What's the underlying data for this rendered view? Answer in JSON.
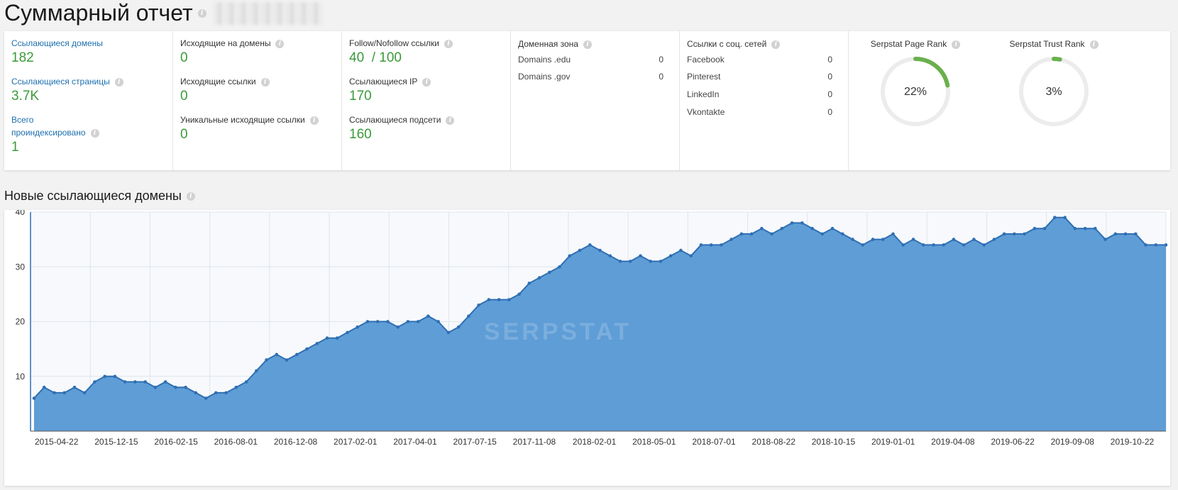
{
  "page": {
    "title": "Суммарный отчет"
  },
  "summary": {
    "col1": [
      {
        "label": "Ссылающиеся домены",
        "value": "182",
        "info": false
      },
      {
        "label": "Ссылающиеся страницы",
        "value": "3.7K",
        "info": true
      },
      {
        "label_line1": "Всего",
        "label_line2": "проиндексировано",
        "value": "1",
        "info": true
      }
    ],
    "col2": [
      {
        "label": "Исходящие на домены",
        "value": "0"
      },
      {
        "label": "Исходящие ссылки",
        "value": "0"
      },
      {
        "label": "Уникальные исходящие ссылки",
        "value": "0"
      }
    ],
    "col3": [
      {
        "label": "Follow/Nofollow ссылки",
        "value": "40  / 100"
      },
      {
        "label": "Ссылающиеся IP",
        "value": "170"
      },
      {
        "label": "Ссылающиеся подсети",
        "value": "160"
      }
    ],
    "domain_zone": {
      "title": "Доменная зона",
      "rows": [
        {
          "name": "Domains .edu",
          "value": "0"
        },
        {
          "name": "Domains .gov",
          "value": "0"
        }
      ]
    },
    "social": {
      "title": "Ссылки с соц. сетей",
      "rows": [
        {
          "name": "Facebook",
          "value": "0"
        },
        {
          "name": "Pinterest",
          "value": "0"
        },
        {
          "name": "LinkedIn",
          "value": "0"
        },
        {
          "name": "Vkontakte",
          "value": "0"
        }
      ]
    },
    "ranks": [
      {
        "title": "Serpstat Page Rank",
        "label": "22%",
        "value": 22
      },
      {
        "title": "Serpstat Trust Rank",
        "label": "3%",
        "value": 3
      }
    ]
  },
  "section": {
    "title": "Новые ссылающиеся домены"
  },
  "colors": {
    "accent_green": "#3a9a3a",
    "link_blue": "#1c6fae",
    "area_fill": "#5b9bd5",
    "line": "#2f6fb3",
    "ring_green": "#6ab04c",
    "ring_track": "#ececec"
  },
  "chart_data": {
    "type": "area",
    "watermark": "SERPSTAT",
    "ylim": [
      0,
      40
    ],
    "yticks": [
      10,
      20,
      30,
      40
    ],
    "xticks": [
      "2015-04-22",
      "2015-12-15",
      "2016-02-15",
      "2016-08-01",
      "2016-12-08",
      "2017-02-01",
      "2017-04-01",
      "2017-07-15",
      "2017-11-08",
      "2018-02-01",
      "2018-05-01",
      "2018-07-01",
      "2018-08-22",
      "2018-10-15",
      "2019-01-01",
      "2019-04-08",
      "2019-06-22",
      "2019-09-08",
      "2019-10-22"
    ],
    "series": [
      {
        "values": [
          6,
          8,
          7,
          7,
          8,
          7,
          9,
          10,
          10,
          9,
          9,
          9,
          8,
          9,
          8,
          8,
          7,
          6,
          7,
          7,
          8,
          9,
          11,
          13,
          14,
          13,
          14,
          15,
          16,
          17,
          17,
          18,
          19,
          20,
          20,
          20,
          19,
          20,
          20,
          21,
          20,
          18,
          19,
          21,
          23,
          24,
          24,
          24,
          25,
          27,
          28,
          29,
          30,
          32,
          33,
          34,
          33,
          32,
          31,
          31,
          32,
          31,
          31,
          32,
          33,
          32,
          34,
          34,
          34,
          35,
          36,
          36,
          37,
          36,
          37,
          38,
          38,
          37,
          36,
          37,
          36,
          35,
          34,
          35,
          35,
          36,
          34,
          35,
          34,
          34,
          34,
          35,
          34,
          35,
          34,
          35,
          36,
          36,
          36,
          37,
          37,
          39,
          39,
          37,
          37,
          37,
          35,
          36,
          36,
          36,
          34,
          34,
          34
        ]
      }
    ]
  }
}
